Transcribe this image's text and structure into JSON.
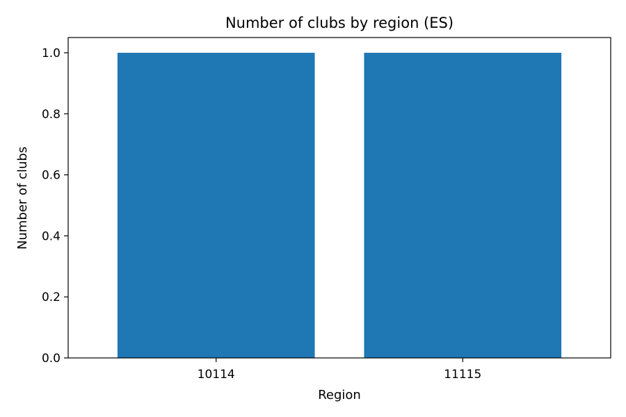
{
  "chart_data": {
    "type": "bar",
    "title": "Number of clubs by region (ES)",
    "xlabel": "Region",
    "ylabel": "Number of clubs",
    "categories": [
      "10114",
      "11115"
    ],
    "values": [
      1,
      1
    ],
    "ylim": [
      0,
      1.05
    ],
    "yticks": [
      "0.0",
      "0.2",
      "0.4",
      "0.6",
      "0.8",
      "1.0"
    ],
    "grid": false,
    "legend": "none",
    "bar_color": "#1f77b4"
  }
}
